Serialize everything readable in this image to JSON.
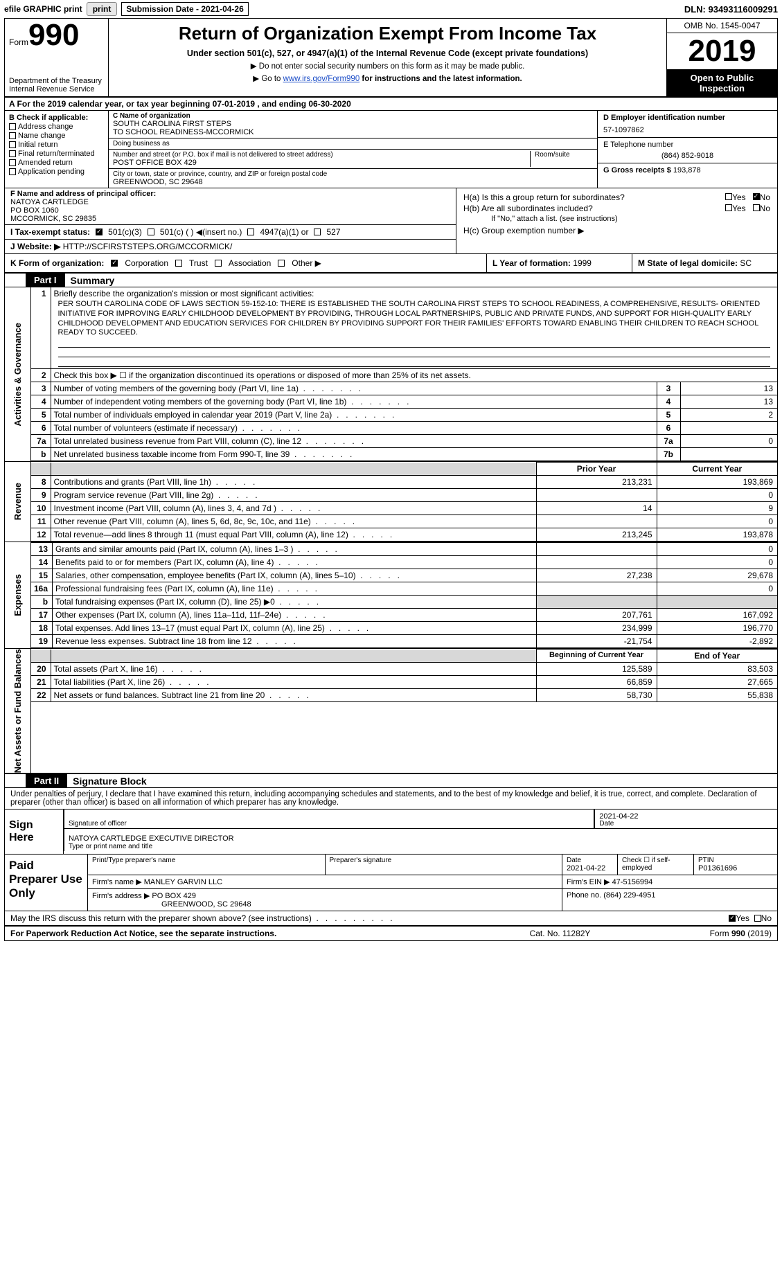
{
  "topbar": {
    "efile": "efile GRAPHIC print",
    "submission_label": "Submission Date - 2021-04-26",
    "dln": "DLN: 93493116009291"
  },
  "header": {
    "form_word": "Form",
    "form_number": "990",
    "dept": "Department of the Treasury\nInternal Revenue Service",
    "title": "Return of Organization Exempt From Income Tax",
    "subtitle": "Under section 501(c), 527, or 4947(a)(1) of the Internal Revenue Code (except private foundations)",
    "instr1": "▶ Do not enter social security numbers on this form as it may be made public.",
    "instr2_pre": "▶ Go to ",
    "instr2_link": "www.irs.gov/Form990",
    "instr2_post": " for instructions and the latest information.",
    "omb": "OMB No. 1545-0047",
    "year": "2019",
    "inspect": "Open to Public Inspection"
  },
  "row_a": "A For the 2019 calendar year, or tax year beginning 07-01-2019   , and ending 06-30-2020",
  "B": {
    "label": "B Check if applicable:",
    "items": [
      "Address change",
      "Name change",
      "Initial return",
      "Final return/terminated",
      "Amended return",
      "Application pending"
    ]
  },
  "C": {
    "name_label": "C Name of organization",
    "name": "SOUTH CAROLINA FIRST STEPS\nTO SCHOOL READINESS-MCCORMICK",
    "dba_label": "Doing business as",
    "dba": "",
    "street_label": "Number and street (or P.O. box if mail is not delivered to street address)",
    "room_label": "Room/suite",
    "street": "POST OFFICE BOX 429",
    "city_label": "City or town, state or province, country, and ZIP or foreign postal code",
    "city": "GREENWOOD, SC  29648"
  },
  "D": {
    "label": "D Employer identification number",
    "val": "57-1097862"
  },
  "E": {
    "label": "E Telephone number",
    "val": "(864) 852-9018"
  },
  "G": {
    "label": "G Gross receipts $",
    "val": "193,878"
  },
  "F": {
    "label": "F  Name and address of principal officer:",
    "name": "NATOYA CARTLEDGE",
    "line2": "PO BOX 1060",
    "line3": "MCCORMICK, SC  29835"
  },
  "H": {
    "a": "H(a)  Is this a group return for subordinates?",
    "b": "H(b)  Are all subordinates included?",
    "b_note": "If \"No,\" attach a list. (see instructions)",
    "c": "H(c)  Group exemption number ▶",
    "yes": "Yes",
    "no": "No"
  },
  "I": {
    "label": "I   Tax-exempt status:",
    "opts": [
      "501(c)(3)",
      "501(c) (  ) ◀(insert no.)",
      "4947(a)(1) or",
      "527"
    ]
  },
  "J": {
    "label": "J   Website: ▶",
    "val": "HTTP://SCFIRSTSTEPS.ORG/MCCORMICK/"
  },
  "K": {
    "label": "K Form of organization:",
    "opts": [
      "Corporation",
      "Trust",
      "Association",
      "Other ▶"
    ]
  },
  "L": {
    "label": "L Year of formation:",
    "val": "1999"
  },
  "M": {
    "label": "M State of legal domicile:",
    "val": "SC"
  },
  "parts": {
    "p1": "Part I",
    "p1_title": "Summary",
    "p2": "Part II",
    "p2_title": "Signature Block"
  },
  "sides": {
    "ag": "Activities & Governance",
    "rev": "Revenue",
    "exp": "Expenses",
    "na": "Net Assets or Fund Balances"
  },
  "summary": {
    "l1_label": "Briefly describe the organization's mission or most significant activities:",
    "mission": "PER SOUTH CAROLINA CODE OF LAWS SECTION 59-152-10: THERE IS ESTABLISHED THE SOUTH CAROLINA FIRST STEPS TO SCHOOL READINESS, A COMPREHENSIVE, RESULTS- ORIENTED INITIATIVE FOR IMPROVING EARLY CHILDHOOD DEVELOPMENT BY PROVIDING, THROUGH LOCAL PARTNERSHIPS, PUBLIC AND PRIVATE FUNDS, AND SUPPORT FOR HIGH-QUALITY EARLY CHILDHOOD DEVELOPMENT AND EDUCATION SERVICES FOR CHILDREN BY PROVIDING SUPPORT FOR THEIR FAMILIES' EFFORTS TOWARD ENABLING THEIR CHILDREN TO REACH SCHOOL READY TO SUCCEED.",
    "l2": "Check this box ▶ ☐ if the organization discontinued its operations or disposed of more than 25% of its net assets.",
    "rows_top": [
      {
        "n": "3",
        "d": "Number of voting members of the governing body (Part VI, line 1a)",
        "k": "3",
        "v": "13"
      },
      {
        "n": "4",
        "d": "Number of independent voting members of the governing body (Part VI, line 1b)",
        "k": "4",
        "v": "13"
      },
      {
        "n": "5",
        "d": "Total number of individuals employed in calendar year 2019 (Part V, line 2a)",
        "k": "5",
        "v": "2"
      },
      {
        "n": "6",
        "d": "Total number of volunteers (estimate if necessary)",
        "k": "6",
        "v": ""
      },
      {
        "n": "7a",
        "d": "Total unrelated business revenue from Part VIII, column (C), line 12",
        "k": "7a",
        "v": "0"
      },
      {
        "n": "b",
        "d": "Net unrelated business taxable income from Form 990-T, line 39",
        "k": "7b",
        "v": ""
      }
    ],
    "col_prior": "Prior Year",
    "col_current": "Current Year",
    "col_boy": "Beginning of Current Year",
    "col_eoy": "End of Year",
    "rev_rows": [
      {
        "n": "8",
        "d": "Contributions and grants (Part VIII, line 1h)",
        "p": "213,231",
        "c": "193,869"
      },
      {
        "n": "9",
        "d": "Program service revenue (Part VIII, line 2g)",
        "p": "",
        "c": "0"
      },
      {
        "n": "10",
        "d": "Investment income (Part VIII, column (A), lines 3, 4, and 7d )",
        "p": "14",
        "c": "9"
      },
      {
        "n": "11",
        "d": "Other revenue (Part VIII, column (A), lines 5, 6d, 8c, 9c, 10c, and 11e)",
        "p": "",
        "c": "0"
      },
      {
        "n": "12",
        "d": "Total revenue—add lines 8 through 11 (must equal Part VIII, column (A), line 12)",
        "p": "213,245",
        "c": "193,878"
      }
    ],
    "exp_rows": [
      {
        "n": "13",
        "d": "Grants and similar amounts paid (Part IX, column (A), lines 1–3 )",
        "p": "",
        "c": "0"
      },
      {
        "n": "14",
        "d": "Benefits paid to or for members (Part IX, column (A), line 4)",
        "p": "",
        "c": "0"
      },
      {
        "n": "15",
        "d": "Salaries, other compensation, employee benefits (Part IX, column (A), lines 5–10)",
        "p": "27,238",
        "c": "29,678"
      },
      {
        "n": "16a",
        "d": "Professional fundraising fees (Part IX, column (A), line 11e)",
        "p": "",
        "c": "0"
      },
      {
        "n": "b",
        "d": "Total fundraising expenses (Part IX, column (D), line 25) ▶0",
        "p": "shade",
        "c": "shade"
      },
      {
        "n": "17",
        "d": "Other expenses (Part IX, column (A), lines 11a–11d, 11f–24e)",
        "p": "207,761",
        "c": "167,092"
      },
      {
        "n": "18",
        "d": "Total expenses. Add lines 13–17 (must equal Part IX, column (A), line 25)",
        "p": "234,999",
        "c": "196,770"
      },
      {
        "n": "19",
        "d": "Revenue less expenses. Subtract line 18 from line 12",
        "p": "-21,754",
        "c": "-2,892"
      }
    ],
    "na_rows": [
      {
        "n": "20",
        "d": "Total assets (Part X, line 16)",
        "p": "125,589",
        "c": "83,503"
      },
      {
        "n": "21",
        "d": "Total liabilities (Part X, line 26)",
        "p": "66,859",
        "c": "27,665"
      },
      {
        "n": "22",
        "d": "Net assets or fund balances. Subtract line 21 from line 20",
        "p": "58,730",
        "c": "55,838"
      }
    ]
  },
  "sig": {
    "decl": "Under penalties of perjury, I declare that I have examined this return, including accompanying schedules and statements, and to the best of my knowledge and belief, it is true, correct, and complete. Declaration of preparer (other than officer) is based on all information of which preparer has any knowledge.",
    "sign_here": "Sign Here",
    "sig_of_officer": "Signature of officer",
    "date": "2021-04-22",
    "date_label": "Date",
    "name_title": "NATOYA CARTLEDGE  EXECUTIVE DIRECTOR",
    "name_title_label": "Type or print name and title"
  },
  "prep": {
    "label": "Paid Preparer Use Only",
    "print_name_label": "Print/Type preparer's name",
    "print_name": "",
    "sig_label": "Preparer's signature",
    "date_label": "Date",
    "date": "2021-04-22",
    "check_label": "Check ☐ if self-employed",
    "ptin_label": "PTIN",
    "ptin": "P01361696",
    "firm_name_label": "Firm's name   ▶",
    "firm_name": "MANLEY GARVIN LLC",
    "firm_ein_label": "Firm's EIN ▶",
    "firm_ein": "47-5156994",
    "firm_addr_label": "Firm's address ▶",
    "firm_addr1": "PO BOX 429",
    "firm_addr2": "GREENWOOD, SC  29648",
    "phone_label": "Phone no.",
    "phone": "(864) 229-4951"
  },
  "discuss": {
    "q": "May the IRS discuss this return with the preparer shown above? (see instructions)",
    "yes": "Yes",
    "no": "No"
  },
  "footer": {
    "left": "For Paperwork Reduction Act Notice, see the separate instructions.",
    "mid": "Cat. No. 11282Y",
    "right_form": "Form 990 (2019)",
    "right_form_bold": "990"
  },
  "colors": {
    "link": "#1a4cc7",
    "shade": "#d8d8d8"
  }
}
